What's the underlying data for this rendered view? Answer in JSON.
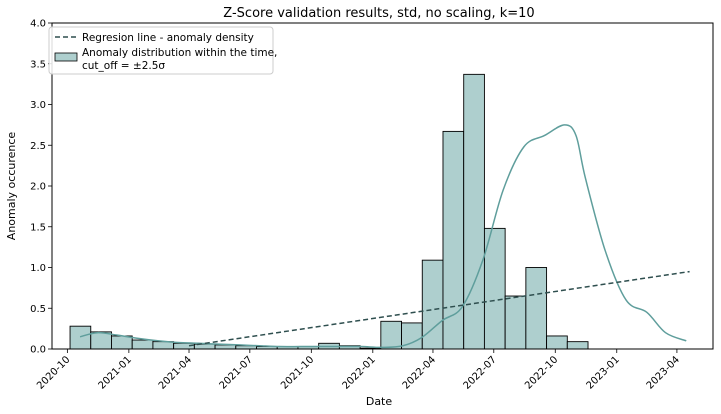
{
  "chart_data": {
    "type": "bar",
    "title": "Z-Score validation results, std, no scaling, k=10",
    "xlabel": "Date",
    "ylabel": "Anomaly occurence",
    "ylim": [
      0,
      4.0
    ],
    "xlim": [
      "2020-09-08",
      "2023-05-25"
    ],
    "yticks": [
      "0.0",
      "0.5",
      "1.0",
      "1.5",
      "2.0",
      "2.5",
      "3.0",
      "3.5",
      "4.0"
    ],
    "xticks": [
      "2020-10",
      "2021-01",
      "2021-04",
      "2021-07",
      "2021-10",
      "2022-01",
      "2022-04",
      "2022-07",
      "2022-10",
      "2023-01",
      "2023-04"
    ],
    "grid": false,
    "legend_position": "top-left",
    "colors": {
      "bar_fill": "#aecfce",
      "bar_edge": "#000000",
      "kde": "#5f9e9c",
      "regression": "#2f4f4f"
    },
    "bins": [
      {
        "start": "2020-10-05",
        "end": "2020-11-05",
        "value": 0.28
      },
      {
        "start": "2020-11-05",
        "end": "2020-12-06",
        "value": 0.21
      },
      {
        "start": "2020-12-06",
        "end": "2021-01-06",
        "value": 0.16
      },
      {
        "start": "2021-01-06",
        "end": "2021-02-06",
        "value": 0.11
      },
      {
        "start": "2021-02-06",
        "end": "2021-03-09",
        "value": 0.09
      },
      {
        "start": "2021-03-09",
        "end": "2021-04-09",
        "value": 0.07
      },
      {
        "start": "2021-04-09",
        "end": "2021-05-10",
        "value": 0.06
      },
      {
        "start": "2021-05-10",
        "end": "2021-06-10",
        "value": 0.05
      },
      {
        "start": "2021-06-10",
        "end": "2021-07-11",
        "value": 0.04
      },
      {
        "start": "2021-07-11",
        "end": "2021-08-11",
        "value": 0.03
      },
      {
        "start": "2021-08-11",
        "end": "2021-09-11",
        "value": 0.03
      },
      {
        "start": "2021-09-11",
        "end": "2021-10-12",
        "value": 0.03
      },
      {
        "start": "2021-10-12",
        "end": "2021-11-12",
        "value": 0.07
      },
      {
        "start": "2021-11-12",
        "end": "2021-12-13",
        "value": 0.04
      },
      {
        "start": "2021-12-13",
        "end": "2022-01-13",
        "value": 0.01
      },
      {
        "start": "2022-01-13",
        "end": "2022-02-13",
        "value": 0.34
      },
      {
        "start": "2022-02-13",
        "end": "2022-03-16",
        "value": 0.32
      },
      {
        "start": "2022-03-16",
        "end": "2022-04-16",
        "value": 1.09
      },
      {
        "start": "2022-04-16",
        "end": "2022-05-17",
        "value": 2.67
      },
      {
        "start": "2022-05-17",
        "end": "2022-06-17",
        "value": 3.37
      },
      {
        "start": "2022-06-17",
        "end": "2022-07-18",
        "value": 1.48
      },
      {
        "start": "2022-07-18",
        "end": "2022-08-18",
        "value": 0.65
      },
      {
        "start": "2022-08-18",
        "end": "2022-09-18",
        "value": 1.0
      },
      {
        "start": "2022-09-18",
        "end": "2022-10-19",
        "value": 0.16
      },
      {
        "start": "2022-10-19",
        "end": "2022-11-19",
        "value": 0.09
      }
    ],
    "kde": [
      [
        "2020-10-20",
        0.15
      ],
      [
        "2020-11-15",
        0.2
      ],
      [
        "2020-12-15",
        0.17
      ],
      [
        "2021-01-15",
        0.13
      ],
      [
        "2021-02-15",
        0.1
      ],
      [
        "2021-03-15",
        0.08
      ],
      [
        "2021-04-15",
        0.07
      ],
      [
        "2021-05-15",
        0.06
      ],
      [
        "2021-06-15",
        0.05
      ],
      [
        "2021-07-15",
        0.04
      ],
      [
        "2021-08-15",
        0.03
      ],
      [
        "2021-09-15",
        0.03
      ],
      [
        "2021-10-15",
        0.03
      ],
      [
        "2021-11-15",
        0.03
      ],
      [
        "2021-12-15",
        0.03
      ],
      [
        "2022-01-15",
        0.02
      ],
      [
        "2022-02-15",
        0.04
      ],
      [
        "2022-03-15",
        0.14
      ],
      [
        "2022-04-15",
        0.35
      ],
      [
        "2022-05-15",
        0.52
      ],
      [
        "2022-06-15",
        1.1
      ],
      [
        "2022-07-15",
        1.95
      ],
      [
        "2022-08-15",
        2.48
      ],
      [
        "2022-09-15",
        2.62
      ],
      [
        "2022-10-15",
        2.75
      ],
      [
        "2022-11-01",
        2.62
      ],
      [
        "2022-11-15",
        2.1
      ],
      [
        "2022-12-15",
        1.2
      ],
      [
        "2023-01-15",
        0.6
      ],
      [
        "2023-02-15",
        0.45
      ],
      [
        "2023-03-15",
        0.2
      ],
      [
        "2023-04-15",
        0.1
      ]
    ],
    "regression": {
      "x": [
        "2021-04-01",
        "2023-04-20"
      ],
      "y": [
        0.04,
        0.95
      ]
    },
    "legend": [
      {
        "type": "line",
        "label": "Regresion line - anomaly density"
      },
      {
        "type": "patch",
        "label_lines": [
          "Anomaly distribution within the time,",
          "cut_off = ±2.5σ"
        ]
      }
    ]
  }
}
